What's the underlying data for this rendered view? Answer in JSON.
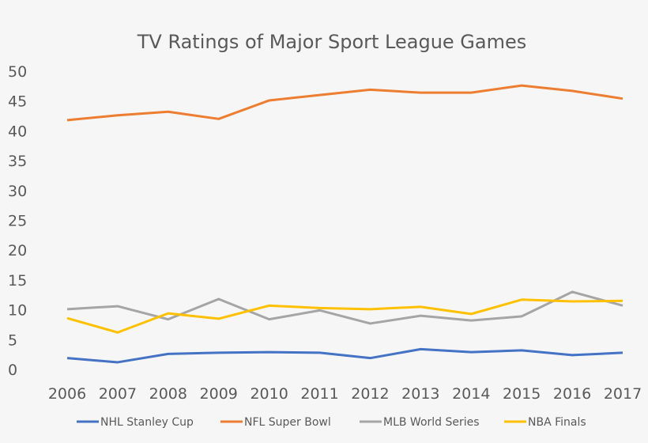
{
  "chart_data": {
    "type": "line",
    "title": "TV Ratings of Major Sport League Games",
    "xlabel": "",
    "ylabel": "",
    "x": [
      2006,
      2007,
      2008,
      2009,
      2010,
      2011,
      2012,
      2013,
      2014,
      2015,
      2016,
      2017
    ],
    "ylim": [
      0,
      50
    ],
    "yticks": [
      0,
      5,
      10,
      15,
      20,
      25,
      30,
      35,
      40,
      45,
      50
    ],
    "grid": false,
    "legend_position": "bottom",
    "series": [
      {
        "name": "NHL Stanley Cup",
        "color": "#4472c4",
        "values": [
          1.9,
          1.2,
          2.6,
          2.8,
          2.9,
          2.8,
          1.9,
          3.4,
          2.9,
          3.2,
          2.4,
          2.8
        ]
      },
      {
        "name": "NFL Super Bowl",
        "color": "#ed7d31",
        "values": [
          41.8,
          42.6,
          43.2,
          42.0,
          45.1,
          46.0,
          46.9,
          46.4,
          46.4,
          47.6,
          46.7,
          45.4
        ]
      },
      {
        "name": "MLB World Series",
        "color": "#a5a5a5",
        "values": [
          10.1,
          10.6,
          8.4,
          11.8,
          8.4,
          9.9,
          7.7,
          9.0,
          8.2,
          8.9,
          13.0,
          10.7
        ]
      },
      {
        "name": "NBA Finals",
        "color": "#ffc000",
        "values": [
          8.6,
          6.2,
          9.4,
          8.5,
          10.7,
          10.3,
          10.1,
          10.5,
          9.3,
          11.7,
          11.4,
          11.5
        ]
      }
    ]
  }
}
